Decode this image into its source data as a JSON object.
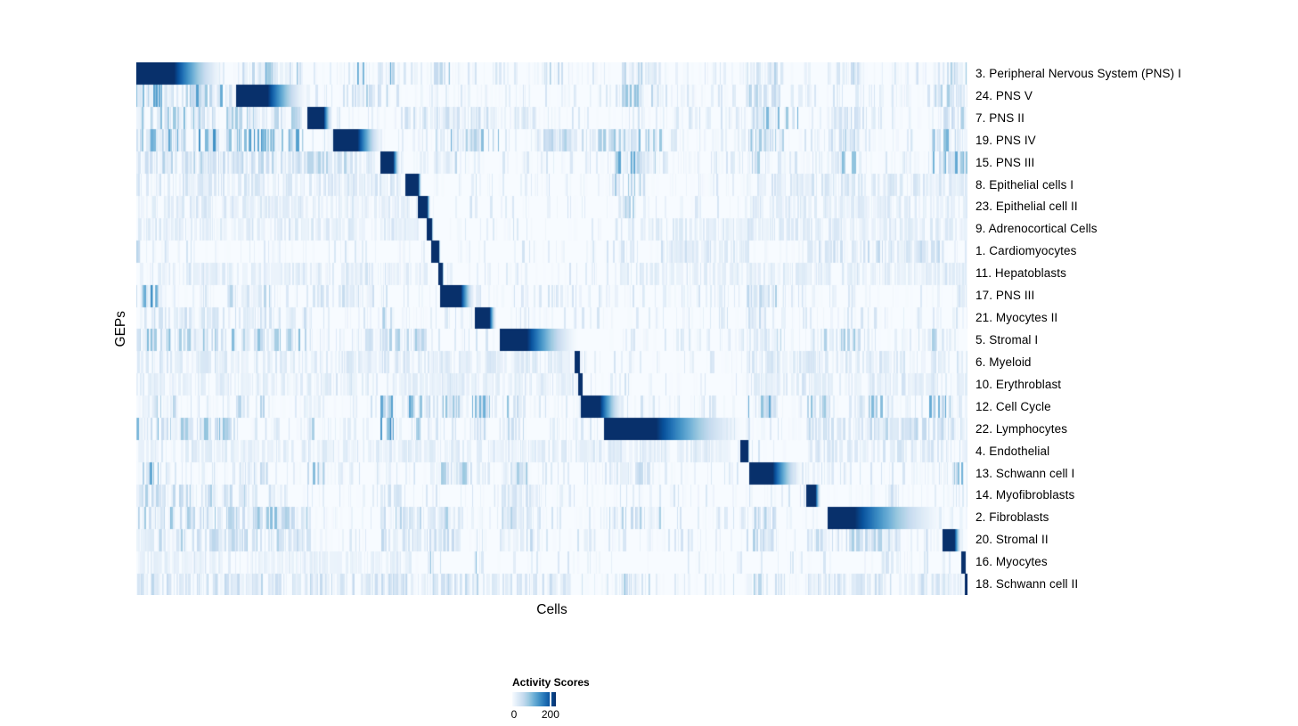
{
  "figure": {
    "x_label": "Cells",
    "y_label": "GEPs"
  },
  "legend": {
    "title": "Activity Scores",
    "tick_min_label": "0",
    "tick_max_label": "200",
    "tick_min_position": 0.04,
    "tick_max_position": 0.875
  },
  "palette": {
    "name": "Blues",
    "low": "#f7fbff",
    "high": "#08306b",
    "stops": [
      "#f7fbff",
      "#deebf7",
      "#c6dbef",
      "#9ecae1",
      "#6baed6",
      "#4292c6",
      "#2171b5",
      "#08519c",
      "#08306b"
    ]
  },
  "chart_data": {
    "type": "heatmap",
    "title": "",
    "xlabel": "Cells",
    "ylabel": "GEPs",
    "value_range": [
      0,
      200
    ],
    "colorbar": {
      "label": "Activity Scores",
      "ticks": [
        0,
        200
      ]
    },
    "grid": false,
    "seed": 1337,
    "rows": [
      {
        "label": "3. Peripheral Nervous System (PNS) I",
        "base": 0.45,
        "block": {
          "start": 0.0,
          "solid": 0.045,
          "fade": 0.106
        },
        "bands": [
          [
            0.12,
            0.195,
            0.5
          ],
          [
            0.257,
            0.313,
            0.5
          ],
          [
            0.358,
            0.377,
            0.35
          ],
          [
            0.493,
            0.513,
            0.3
          ],
          [
            0.584,
            0.631,
            0.4
          ],
          [
            0.734,
            0.779,
            0.35
          ],
          [
            0.831,
            0.874,
            0.3
          ],
          [
            0.957,
            1.0,
            0.35
          ]
        ]
      },
      {
        "label": "24. PNS V",
        "base": 0.5,
        "block": {
          "start": 0.12,
          "solid": 0.158,
          "fade": 0.206
        },
        "bands": [
          [
            0.0,
            0.117,
            0.55
          ],
          [
            0.259,
            0.308,
            0.3
          ],
          [
            0.584,
            0.629,
            0.4
          ],
          [
            0.734,
            0.779,
            0.35
          ],
          [
            0.957,
            1.0,
            0.3
          ]
        ]
      },
      {
        "label": "7. PNS II",
        "base": 0.5,
        "block": {
          "start": 0.206,
          "solid": 0.225,
          "fade": 0.236
        },
        "bands": [
          [
            0.0,
            0.2,
            0.4
          ],
          [
            0.318,
            0.479,
            0.2
          ],
          [
            0.74,
            0.797,
            0.45
          ],
          [
            0.833,
            0.867,
            0.25
          ],
          [
            0.957,
            1.0,
            0.3
          ]
        ]
      },
      {
        "label": "19. PNS IV",
        "base": 0.55,
        "block": {
          "start": 0.237,
          "solid": 0.266,
          "fade": 0.297
        },
        "bands": [
          [
            0.0,
            0.2,
            0.6
          ],
          [
            0.358,
            0.436,
            0.45
          ],
          [
            0.49,
            0.586,
            0.35
          ],
          [
            0.586,
            0.634,
            0.45
          ],
          [
            0.734,
            0.781,
            0.4
          ],
          [
            0.831,
            0.871,
            0.3
          ],
          [
            0.957,
            1.0,
            0.45
          ]
        ]
      },
      {
        "label": "15. PNS III",
        "base": 0.5,
        "block": {
          "start": 0.294,
          "solid": 0.309,
          "fade": 0.317
        },
        "bands": [
          [
            0.0,
            0.286,
            0.3
          ],
          [
            0.358,
            0.393,
            0.3
          ],
          [
            0.576,
            0.636,
            0.5
          ],
          [
            0.734,
            0.756,
            0.4
          ],
          [
            0.831,
            0.871,
            0.45
          ],
          [
            0.954,
            1.0,
            0.5
          ]
        ]
      },
      {
        "label": "8. Epithelial cells I",
        "base": 0.35,
        "block": {
          "start": 0.324,
          "solid": 0.339,
          "fade": 0.343
        },
        "bands": [
          [
            0.0,
            0.318,
            0.15
          ],
          [
            0.576,
            0.612,
            0.4
          ],
          [
            0.734,
            1.0,
            0.15
          ]
        ]
      },
      {
        "label": "23. Epithelial cell II",
        "base": 0.3,
        "block": {
          "start": 0.339,
          "solid": 0.349,
          "fade": 0.354
        },
        "bands": [
          [
            0.0,
            0.329,
            0.12
          ],
          [
            0.58,
            0.603,
            0.3
          ],
          [
            0.734,
            1.0,
            0.12
          ]
        ]
      },
      {
        "label": "9. Adrenocortical Cells",
        "base": 0.3,
        "block": {
          "start": 0.349,
          "solid": 0.355,
          "fade": 0.357
        },
        "bands": [
          [
            0.0,
            0.34,
            0.12
          ],
          [
            0.576,
            1.0,
            0.12
          ]
        ]
      },
      {
        "label": "1. Cardiomyocytes",
        "base": 0.35,
        "block": {
          "start": 0.355,
          "solid": 0.363,
          "fade": 0.366
        },
        "bands": [
          [
            0.0,
            0.008,
            0.5
          ],
          [
            0.583,
            0.599,
            0.35
          ],
          [
            0.629,
            0.736,
            0.18
          ],
          [
            0.807,
            0.972,
            0.22
          ]
        ]
      },
      {
        "label": "11. Hepatoblasts",
        "base": 0.3,
        "block": {
          "start": 0.363,
          "solid": 0.368,
          "fade": 0.37
        },
        "bands": [
          [
            0.0,
            0.35,
            0.1
          ],
          [
            0.576,
            1.0,
            0.1
          ]
        ]
      },
      {
        "label": "17. PNS III",
        "base": 0.45,
        "block": {
          "start": 0.366,
          "solid": 0.39,
          "fade": 0.407
        },
        "bands": [
          [
            0.0,
            0.031,
            0.65
          ],
          [
            0.109,
            0.163,
            0.3
          ],
          [
            0.211,
            0.286,
            0.2
          ],
          [
            0.734,
            0.771,
            0.3
          ],
          [
            0.989,
            1.0,
            0.4
          ]
        ]
      },
      {
        "label": "21. Myocytes II",
        "base": 0.4,
        "block": {
          "start": 0.407,
          "solid": 0.424,
          "fade": 0.433
        },
        "bands": [
          [
            0.0,
            0.211,
            0.2
          ],
          [
            0.294,
            0.31,
            0.3
          ],
          [
            0.734,
            0.758,
            0.25
          ],
          [
            0.991,
            0.997,
            0.6
          ]
        ]
      },
      {
        "label": "5. Stromal I",
        "base": 0.5,
        "block": {
          "start": 0.437,
          "solid": 0.469,
          "fade": 0.532
        },
        "bands": [
          [
            0.0,
            0.211,
            0.4
          ],
          [
            0.259,
            0.308,
            0.35
          ],
          [
            0.294,
            0.35,
            0.35
          ],
          [
            0.734,
            0.779,
            0.3
          ],
          [
            0.807,
            0.876,
            0.35
          ],
          [
            0.948,
            0.98,
            0.3
          ]
        ]
      },
      {
        "label": "6. Myeloid",
        "base": 0.35,
        "block": {
          "start": 0.527,
          "solid": 0.533,
          "fade": 0.534
        },
        "bands": [
          [
            0.0,
            0.522,
            0.13
          ],
          [
            0.734,
            1.0,
            0.15
          ]
        ]
      },
      {
        "label": "10. Erythroblast",
        "base": 0.3,
        "block": {
          "start": 0.532,
          "solid": 0.536,
          "fade": 0.537
        },
        "bands": [
          [
            0.0,
            0.522,
            0.1
          ],
          [
            0.734,
            1.0,
            0.1
          ]
        ]
      },
      {
        "label": "12. Cell Cycle",
        "base": 0.5,
        "block": {
          "start": 0.535,
          "solid": 0.557,
          "fade": 0.587
        },
        "bands": [
          [
            0.008,
            0.05,
            0.35
          ],
          [
            0.12,
            0.158,
            0.3
          ],
          [
            0.204,
            0.213,
            0.45
          ],
          [
            0.294,
            0.311,
            0.6
          ],
          [
            0.322,
            0.354,
            0.55
          ],
          [
            0.364,
            0.39,
            0.5
          ],
          [
            0.404,
            0.426,
            0.45
          ],
          [
            0.439,
            0.468,
            0.5
          ],
          [
            0.734,
            0.771,
            0.5
          ],
          [
            0.807,
            0.835,
            0.4
          ],
          [
            0.856,
            0.91,
            0.45
          ],
          [
            0.951,
            1.0,
            0.5
          ]
        ]
      },
      {
        "label": "22. Lymphocytes",
        "base": 0.5,
        "block": {
          "start": 0.563,
          "solid": 0.625,
          "fade": 0.732
        },
        "bands": [
          [
            0.0,
            0.117,
            0.45
          ],
          [
            0.206,
            0.222,
            0.3
          ],
          [
            0.294,
            0.31,
            0.7
          ],
          [
            0.329,
            0.348,
            0.5
          ],
          [
            0.404,
            0.42,
            0.3
          ],
          [
            0.439,
            0.471,
            0.3
          ],
          [
            0.807,
            1.0,
            0.25
          ]
        ]
      },
      {
        "label": "4. Endothelial",
        "base": 0.3,
        "block": {
          "start": 0.727,
          "solid": 0.735,
          "fade": 0.737
        },
        "bands": [
          [
            0.0,
            0.715,
            0.12
          ],
          [
            0.807,
            1.0,
            0.15
          ]
        ]
      },
      {
        "label": "13. Schwann cell I",
        "base": 0.45,
        "block": {
          "start": 0.737,
          "solid": 0.765,
          "fade": 0.802
        },
        "bands": [
          [
            0.008,
            0.056,
            0.5
          ],
          [
            0.115,
            0.158,
            0.3
          ],
          [
            0.206,
            0.227,
            0.4
          ],
          [
            0.367,
            0.406,
            0.35
          ],
          [
            0.439,
            0.471,
            0.35
          ],
          [
            0.576,
            0.618,
            0.25
          ],
          [
            0.983,
            1.0,
            0.45
          ]
        ]
      },
      {
        "label": "14. Myofibroblasts",
        "base": 0.35,
        "block": {
          "start": 0.806,
          "solid": 0.817,
          "fade": 0.823
        },
        "bands": [
          [
            0.0,
            0.168,
            0.3
          ],
          [
            0.294,
            0.318,
            0.25
          ],
          [
            0.439,
            0.479,
            0.2
          ],
          [
            0.908,
            0.919,
            0.3
          ]
        ]
      },
      {
        "label": "2. Fibroblasts",
        "base": 0.5,
        "block": {
          "start": 0.832,
          "solid": 0.864,
          "fade": 0.973
        },
        "bands": [
          [
            0.0,
            0.211,
            0.4
          ],
          [
            0.294,
            0.393,
            0.3
          ],
          [
            0.439,
            0.479,
            0.3
          ],
          [
            0.565,
            0.634,
            0.3
          ],
          [
            0.734,
            0.771,
            0.35
          ]
        ]
      },
      {
        "label": "20. Stromal II",
        "base": 0.45,
        "block": {
          "start": 0.97,
          "solid": 0.984,
          "fade": 0.993
        },
        "bands": [
          [
            0.0,
            0.211,
            0.3
          ],
          [
            0.294,
            0.393,
            0.25
          ],
          [
            0.439,
            0.479,
            0.25
          ],
          [
            0.734,
            0.771,
            0.3
          ],
          [
            0.807,
            0.919,
            0.3
          ]
        ]
      },
      {
        "label": "16. Myocytes",
        "base": 0.22,
        "block": {
          "start": 0.993,
          "solid": 0.997,
          "fade": 0.998
        },
        "bands": [
          [
            0.0,
            0.318,
            0.07
          ],
          [
            0.354,
            0.358,
            0.4
          ],
          [
            0.404,
            0.42,
            0.45
          ],
          [
            0.908,
            0.919,
            0.35
          ]
        ]
      },
      {
        "label": "18. Schwann cell II",
        "base": 0.45,
        "block": {
          "start": 0.997,
          "solid": 1.0,
          "fade": 1.0
        },
        "bands": [
          [
            0.0,
            0.522,
            0.25
          ],
          [
            0.576,
            0.618,
            0.3
          ],
          [
            0.734,
            0.771,
            0.35
          ],
          [
            0.807,
            1.0,
            0.2
          ]
        ]
      }
    ]
  }
}
